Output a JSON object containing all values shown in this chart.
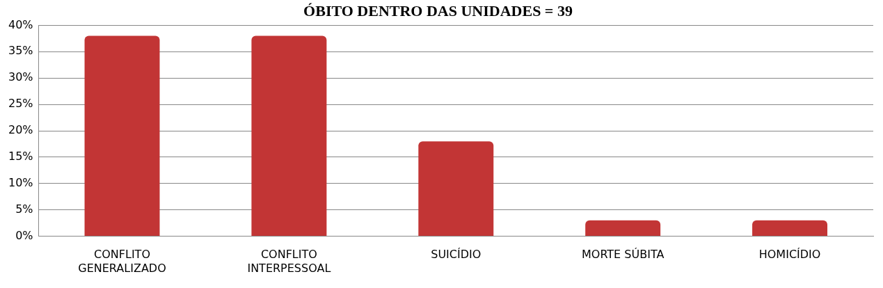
{
  "chart_data": {
    "type": "bar",
    "title": "ÓBITO DENTRO DAS UNIDADES = 39",
    "categories": [
      [
        "CONFLITO",
        "GENERALIZADO"
      ],
      [
        "CONFLITO",
        "INTERPESSOAL"
      ],
      [
        "SUICÍDIO"
      ],
      [
        "MORTE SÚBITA"
      ],
      [
        "HOMICÍDIO"
      ]
    ],
    "values": [
      38,
      38,
      18,
      3,
      3
    ],
    "color": "#c23535",
    "ylim": [
      0,
      40
    ],
    "yticks": [
      {
        "value": 0,
        "label": "0%"
      },
      {
        "value": 5,
        "label": "5%"
      },
      {
        "value": 10,
        "label": "10%"
      },
      {
        "value": 15,
        "label": "15%"
      },
      {
        "value": 20,
        "label": "20%"
      },
      {
        "value": 25,
        "label": "25%"
      },
      {
        "value": 30,
        "label": "30%"
      },
      {
        "value": 35,
        "label": "35%"
      },
      {
        "value": 40,
        "label": "40%"
      }
    ],
    "grid": "y",
    "legend": false
  }
}
